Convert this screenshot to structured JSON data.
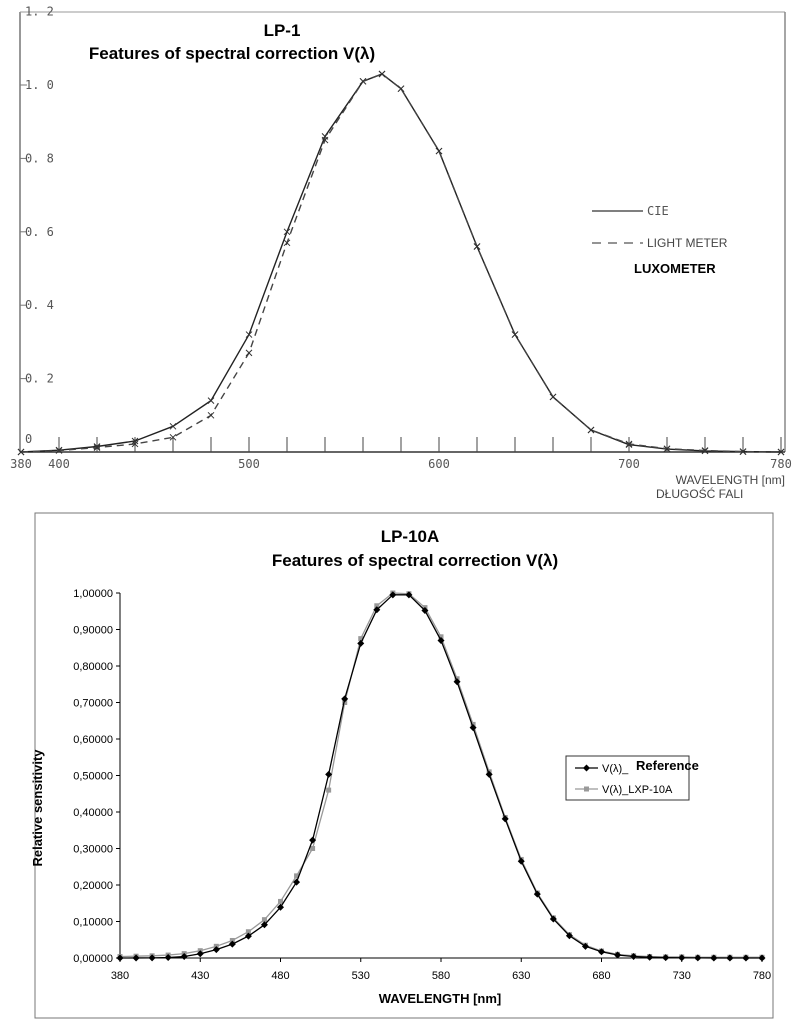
{
  "chart_data": [
    {
      "type": "line",
      "title": "LP-1",
      "subtitle": "Features of spectral correction V(λ)",
      "xlabel": "WAVELENGTH [nm]",
      "xlabel2": "DŁUGOŚĆ FALI",
      "xlim": [
        380,
        780
      ],
      "ylim": [
        0,
        1.2
      ],
      "x_tick_labels": [
        "380",
        "400",
        "500",
        "600",
        "700",
        "780"
      ],
      "x_tick_values": [
        380,
        400,
        500,
        600,
        700,
        780
      ],
      "y_tick_labels": [
        "0",
        "0. 2",
        "0. 4",
        "0. 6",
        "0. 8",
        "1. 0",
        "1. 2"
      ],
      "y_tick_values": [
        0,
        0.2,
        0.4,
        0.6,
        0.8,
        1.0,
        1.2
      ],
      "legend": {
        "placement": "right",
        "items": [
          "CIE",
          "LIGHT METER"
        ],
        "note": "LUXOMETER"
      },
      "x": [
        380,
        400,
        420,
        440,
        460,
        480,
        500,
        520,
        540,
        560,
        570,
        580,
        600,
        620,
        640,
        660,
        680,
        700,
        720,
        740,
        760,
        780
      ],
      "series": [
        {
          "name": "CIE",
          "style": "solid",
          "values": [
            0,
            0.005,
            0.015,
            0.03,
            0.07,
            0.14,
            0.32,
            0.6,
            0.86,
            1.01,
            1.03,
            0.99,
            0.82,
            0.56,
            0.32,
            0.15,
            0.06,
            0.02,
            0.008,
            0.003,
            0.001,
            0
          ]
        },
        {
          "name": "LIGHT METER",
          "style": "dashed",
          "values": [
            0,
            0.004,
            0.012,
            0.022,
            0.04,
            0.1,
            0.27,
            0.57,
            0.85,
            1.01,
            1.03,
            0.99,
            0.82,
            0.56,
            0.32,
            0.15,
            0.06,
            0.022,
            0.009,
            0.004,
            0.001,
            0
          ]
        }
      ]
    },
    {
      "type": "line",
      "title": "LP-10A",
      "subtitle": "Features of spectral correction V(λ)",
      "xlabel": "WAVELENGTH [nm]",
      "ylabel": "Relative sensitivity",
      "xlim": [
        380,
        780
      ],
      "ylim": [
        0,
        1
      ],
      "x_tick_labels": [
        "380",
        "430",
        "480",
        "530",
        "580",
        "630",
        "680",
        "730",
        "780"
      ],
      "x_tick_values": [
        380,
        430,
        480,
        530,
        580,
        630,
        680,
        730,
        780
      ],
      "y_tick_labels": [
        "0,00000",
        "0,10000",
        "0,20000",
        "0,30000",
        "0,40000",
        "0,50000",
        "0,60000",
        "0,70000",
        "0,80000",
        "0,90000",
        "1,00000"
      ],
      "y_tick_values": [
        0,
        0.1,
        0.2,
        0.3,
        0.4,
        0.5,
        0.6,
        0.7,
        0.8,
        0.9,
        1.0
      ],
      "legend": {
        "placement": "right",
        "items": [
          "V(λ)_",
          "V(λ)_LXP-10A"
        ],
        "note": "Reference"
      },
      "x": [
        380,
        390,
        400,
        410,
        420,
        430,
        440,
        450,
        460,
        470,
        480,
        490,
        500,
        510,
        520,
        530,
        540,
        550,
        560,
        570,
        580,
        590,
        600,
        610,
        620,
        630,
        640,
        650,
        660,
        670,
        680,
        690,
        700,
        710,
        720,
        730,
        740,
        750,
        760,
        770,
        780
      ],
      "series": [
        {
          "name": "V(λ)_",
          "color": "#000000",
          "values": [
            4e-05,
            0.00012,
            0.0004,
            0.0012,
            0.004,
            0.0116,
            0.023,
            0.038,
            0.06,
            0.091,
            0.139,
            0.208,
            0.323,
            0.503,
            0.71,
            0.862,
            0.954,
            0.995,
            0.995,
            0.952,
            0.87,
            0.757,
            0.631,
            0.503,
            0.381,
            0.265,
            0.175,
            0.107,
            0.061,
            0.032,
            0.017,
            0.0082,
            0.0041,
            0.0021,
            0.00105,
            0.00052,
            0.00025,
            0.00012,
            6e-05,
            3e-05,
            1.5e-05
          ]
        },
        {
          "name": "V(λ)_LXP-10A",
          "color": "#999999",
          "values": [
            0.004,
            0.005,
            0.006,
            0.008,
            0.012,
            0.02,
            0.032,
            0.048,
            0.072,
            0.105,
            0.155,
            0.225,
            0.3,
            0.46,
            0.7,
            0.875,
            0.965,
            1.0,
            0.998,
            0.96,
            0.88,
            0.765,
            0.64,
            0.51,
            0.385,
            0.27,
            0.178,
            0.11,
            0.064,
            0.035,
            0.019,
            0.01,
            0.006,
            0.004,
            0.003,
            0.003,
            0.002,
            0.002,
            0.002,
            0.002,
            0.002
          ]
        }
      ]
    }
  ]
}
